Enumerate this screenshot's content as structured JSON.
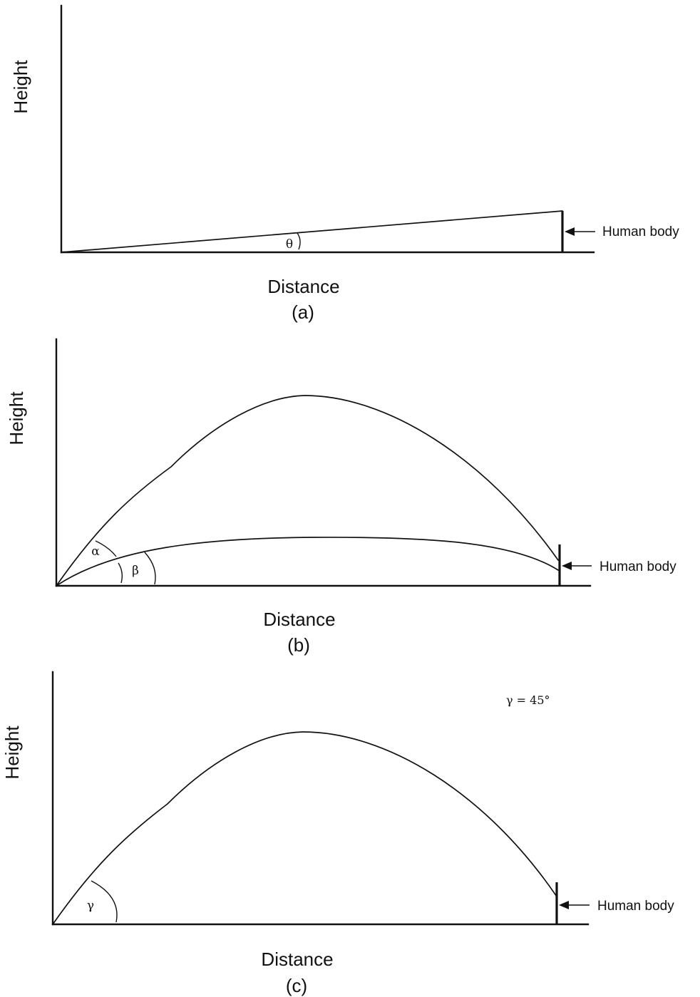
{
  "panels": [
    {
      "id": "a",
      "ylabel": "Height",
      "xlabel": "Distance",
      "caption": "(a)",
      "callout": "Human body",
      "angle_symbols": [
        "θ"
      ]
    },
    {
      "id": "b",
      "ylabel": "Height",
      "xlabel": "Distance",
      "caption": "(b)",
      "callout": "Human body",
      "angle_symbols": [
        "α",
        "β"
      ]
    },
    {
      "id": "c",
      "ylabel": "Height",
      "xlabel": "Distance",
      "caption": "(c)",
      "callout": "Human body",
      "angle_symbols": [
        "γ"
      ],
      "note": "γ = 45°"
    }
  ],
  "colors": {
    "line": "#111111",
    "background": "#ffffff"
  }
}
